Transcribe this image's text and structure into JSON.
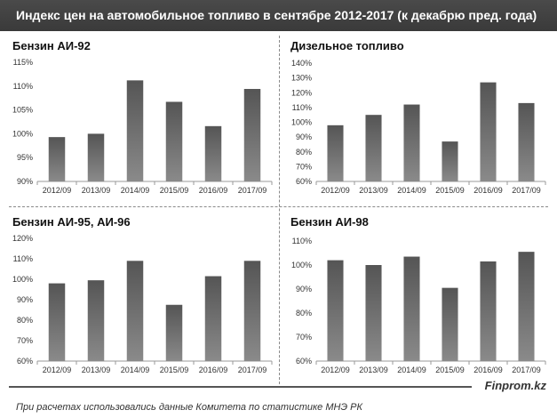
{
  "header": {
    "title": "Индекс цен на автомобильное топливо в сентябре 2012-2017 (к декабрю пред. года)"
  },
  "footer": {
    "source_note": "При расчетах использовались данные Комитета по статистике МНЭ РК",
    "brand": "Finprom.kz"
  },
  "chart_data": [
    {
      "type": "bar",
      "title": "Бензин АИ-92",
      "categories": [
        "2012/09",
        "2013/09",
        "2014/09",
        "2015/09",
        "2016/09",
        "2017/09"
      ],
      "values": [
        99.3,
        100.0,
        111.2,
        106.7,
        101.6,
        109.4
      ],
      "ylim": [
        90,
        115
      ],
      "yticks": [
        "90%",
        "95%",
        "100%",
        "105%",
        "110%",
        "115%"
      ],
      "grid": false
    },
    {
      "type": "bar",
      "title": "Дизельное топливо",
      "categories": [
        "2012/09",
        "2013/09",
        "2014/09",
        "2015/09",
        "2016/09",
        "2017/09"
      ],
      "values": [
        98,
        105,
        112,
        87,
        127,
        113
      ],
      "ylim": [
        60,
        140
      ],
      "yticks": [
        "60%",
        "70%",
        "80%",
        "90%",
        "100%",
        "110%",
        "120%",
        "130%",
        "140%"
      ],
      "grid": false
    },
    {
      "type": "bar",
      "title": "Бензин АИ-95, АИ-96",
      "categories": [
        "2012/09",
        "2013/09",
        "2014/09",
        "2015/09",
        "2016/09",
        "2017/09"
      ],
      "values": [
        98,
        99.5,
        109,
        87.5,
        101.5,
        109
      ],
      "ylim": [
        60,
        120
      ],
      "yticks": [
        "60%",
        "70%",
        "80%",
        "90%",
        "100%",
        "110%",
        "120%"
      ],
      "grid": false
    },
    {
      "type": "bar",
      "title": "Бензин АИ-98",
      "categories": [
        "2012/09",
        "2013/09",
        "2014/09",
        "2015/09",
        "2016/09",
        "2017/09"
      ],
      "values": [
        102,
        100,
        103.5,
        90.5,
        101.5,
        105.5
      ],
      "ylim": [
        60,
        110
      ],
      "yticks": [
        "60%",
        "70%",
        "80%",
        "90%",
        "100%",
        "110%"
      ],
      "grid": false
    }
  ]
}
